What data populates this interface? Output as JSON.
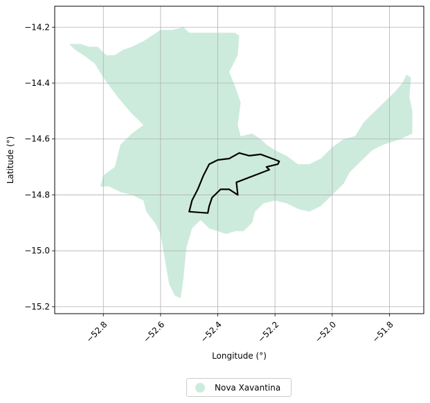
{
  "chart_data": {
    "type": "map",
    "title": "",
    "xlabel": "Longitude (°)",
    "ylabel": "Latitude (°)",
    "xlim": [
      -52.97,
      -51.68
    ],
    "ylim": [
      -15.225,
      -14.125
    ],
    "x_ticks": [
      -52.8,
      -52.6,
      -52.4,
      -52.2,
      -52.0,
      -51.8
    ],
    "x_tick_labels": [
      "−52.8",
      "−52.6",
      "−52.4",
      "−52.2",
      "−52.0",
      "−51.8"
    ],
    "y_ticks": [
      -14.2,
      -14.4,
      -14.6,
      -14.8,
      -15.0,
      -15.2
    ],
    "y_tick_labels": [
      "−14.2",
      "−14.4",
      "−14.6",
      "−14.8",
      "−15.0",
      "−15.2"
    ],
    "grid": true,
    "legend_position": "bottom-center",
    "series": [
      {
        "name": "Nova Xavantina",
        "color": "#cdebdd",
        "style": "filled-region",
        "outline": [
          [
            -52.92,
            -14.26
          ],
          [
            -52.88,
            -14.26
          ],
          [
            -52.85,
            -14.27
          ],
          [
            -52.82,
            -14.27
          ],
          [
            -52.79,
            -14.3
          ],
          [
            -52.76,
            -14.3
          ],
          [
            -52.73,
            -14.28
          ],
          [
            -52.7,
            -14.27
          ],
          [
            -52.66,
            -14.25
          ],
          [
            -52.63,
            -14.23
          ],
          [
            -52.6,
            -14.21
          ],
          [
            -52.56,
            -14.21
          ],
          [
            -52.52,
            -14.2
          ],
          [
            -52.5,
            -14.22
          ],
          [
            -52.46,
            -14.22
          ],
          [
            -52.4,
            -14.22
          ],
          [
            -52.34,
            -14.22
          ],
          [
            -52.325,
            -14.23
          ],
          [
            -52.33,
            -14.3
          ],
          [
            -52.36,
            -14.36
          ],
          [
            -52.34,
            -14.41
          ],
          [
            -52.32,
            -14.47
          ],
          [
            -52.33,
            -14.55
          ],
          [
            -52.32,
            -14.59
          ],
          [
            -52.28,
            -14.58
          ],
          [
            -52.25,
            -14.6
          ],
          [
            -52.23,
            -14.62
          ],
          [
            -52.2,
            -14.64
          ],
          [
            -52.16,
            -14.66
          ],
          [
            -52.12,
            -14.69
          ],
          [
            -52.08,
            -14.69
          ],
          [
            -52.04,
            -14.67
          ],
          [
            -52.0,
            -14.63
          ],
          [
            -51.96,
            -14.6
          ],
          [
            -51.92,
            -14.59
          ],
          [
            -51.89,
            -14.54
          ],
          [
            -51.87,
            -14.52
          ],
          [
            -51.84,
            -14.49
          ],
          [
            -51.81,
            -14.46
          ],
          [
            -51.78,
            -14.43
          ],
          [
            -51.755,
            -14.4
          ],
          [
            -51.74,
            -14.37
          ],
          [
            -51.725,
            -14.38
          ],
          [
            -51.73,
            -14.45
          ],
          [
            -51.72,
            -14.5
          ],
          [
            -51.72,
            -14.58
          ],
          [
            -51.76,
            -14.6
          ],
          [
            -51.82,
            -14.62
          ],
          [
            -51.86,
            -14.64
          ],
          [
            -51.9,
            -14.68
          ],
          [
            -51.94,
            -14.72
          ],
          [
            -51.96,
            -14.76
          ],
          [
            -52.0,
            -14.8
          ],
          [
            -52.04,
            -14.84
          ],
          [
            -52.08,
            -14.86
          ],
          [
            -52.12,
            -14.85
          ],
          [
            -52.16,
            -14.83
          ],
          [
            -52.2,
            -14.82
          ],
          [
            -52.24,
            -14.83
          ],
          [
            -52.27,
            -14.86
          ],
          [
            -52.28,
            -14.9
          ],
          [
            -52.31,
            -14.93
          ],
          [
            -52.34,
            -14.93
          ],
          [
            -52.37,
            -14.94
          ],
          [
            -52.4,
            -14.93
          ],
          [
            -52.43,
            -14.92
          ],
          [
            -52.46,
            -14.89
          ],
          [
            -52.49,
            -14.92
          ],
          [
            -52.51,
            -14.99
          ],
          [
            -52.52,
            -15.1
          ],
          [
            -52.53,
            -15.17
          ],
          [
            -52.55,
            -15.16
          ],
          [
            -52.57,
            -15.12
          ],
          [
            -52.58,
            -15.06
          ],
          [
            -52.59,
            -15.0
          ],
          [
            -52.6,
            -14.94
          ],
          [
            -52.62,
            -14.9
          ],
          [
            -52.65,
            -14.86
          ],
          [
            -52.66,
            -14.82
          ],
          [
            -52.7,
            -14.8
          ],
          [
            -52.74,
            -14.79
          ],
          [
            -52.78,
            -14.77
          ],
          [
            -52.81,
            -14.77
          ],
          [
            -52.8,
            -14.73
          ],
          [
            -52.76,
            -14.7
          ],
          [
            -52.74,
            -14.62
          ],
          [
            -52.7,
            -14.58
          ],
          [
            -52.66,
            -14.55
          ],
          [
            -52.7,
            -14.51
          ],
          [
            -52.75,
            -14.45
          ],
          [
            -52.8,
            -14.38
          ],
          [
            -52.83,
            -14.33
          ],
          [
            -52.87,
            -14.3
          ],
          [
            -52.9,
            -14.28
          ],
          [
            -52.92,
            -14.26
          ]
        ]
      },
      {
        "name": "",
        "color": "#000000",
        "style": "outline",
        "outline": [
          [
            -52.5,
            -14.86
          ],
          [
            -52.49,
            -14.82
          ],
          [
            -52.47,
            -14.78
          ],
          [
            -52.45,
            -14.73
          ],
          [
            -52.43,
            -14.69
          ],
          [
            -52.4,
            -14.675
          ],
          [
            -52.36,
            -14.67
          ],
          [
            -52.325,
            -14.65
          ],
          [
            -52.29,
            -14.66
          ],
          [
            -52.25,
            -14.655
          ],
          [
            -52.21,
            -14.67
          ],
          [
            -52.185,
            -14.68
          ],
          [
            -52.19,
            -14.69
          ],
          [
            -52.23,
            -14.7
          ],
          [
            -52.22,
            -14.71
          ],
          [
            -52.335,
            -14.755
          ],
          [
            -52.33,
            -14.8
          ],
          [
            -52.36,
            -14.78
          ],
          [
            -52.39,
            -14.78
          ],
          [
            -52.4,
            -14.79
          ],
          [
            -52.42,
            -14.81
          ],
          [
            -52.43,
            -14.84
          ],
          [
            -52.435,
            -14.865
          ],
          [
            -52.5,
            -14.86
          ]
        ]
      }
    ]
  },
  "legend": {
    "label": "Nova Xavantina",
    "color": "#cdebdd"
  }
}
